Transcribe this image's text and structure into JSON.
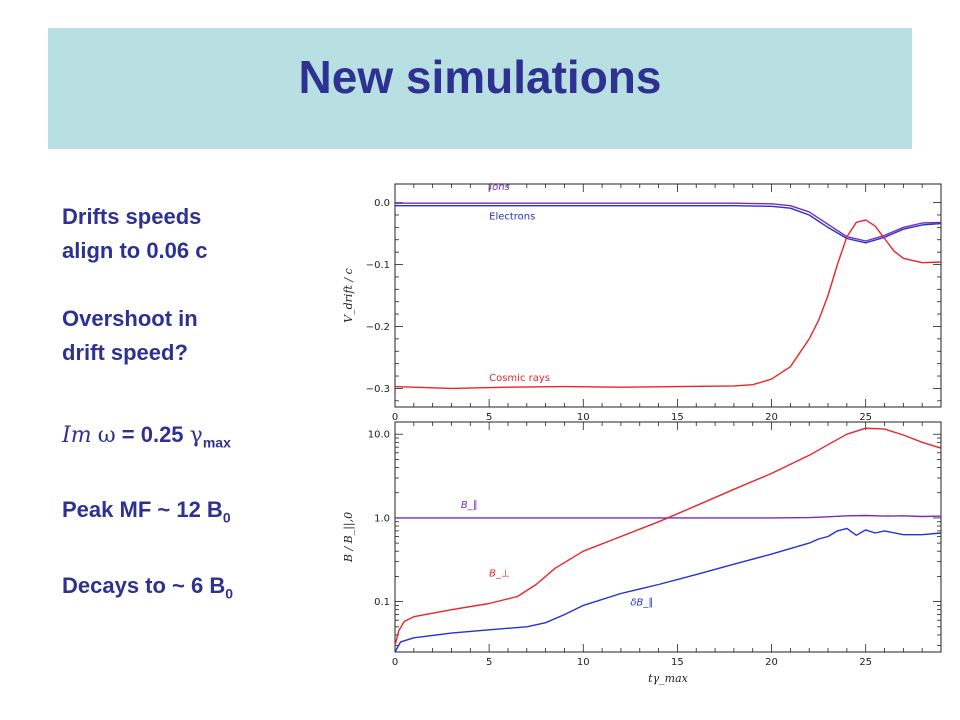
{
  "slide": {
    "title": "New simulations",
    "notes": {
      "line1": "Drifts speeds",
      "line2": "align to 0.06 c",
      "line3": "Overshoot in",
      "line4": "drift speed?",
      "growth_im": "Im",
      "growth_omega": "ω",
      "growth_eq": "= 0.25",
      "growth_gamma": "γ",
      "growth_sub": "max",
      "peak_text": "Peak MF ~ 12 B",
      "peak_sub": "0",
      "decay_text": "Decays to ~ 6 B",
      "decay_sub": "0"
    }
  },
  "colors": {
    "title": "#2e3192",
    "band": "#b8e0e2",
    "red": "#e8262a",
    "blue": "#2432d6",
    "purple": "#7a2ab8"
  },
  "chart_data": [
    {
      "type": "line",
      "xlim": [
        0,
        29
      ],
      "ylim": [
        -0.33,
        0.03
      ],
      "xticks": [
        0,
        5,
        10,
        15,
        20,
        25
      ],
      "yticks": [
        {
          "v": 0.0,
          "label": "0.0"
        },
        {
          "v": -0.1,
          "label": "-0.1"
        },
        {
          "v": -0.2,
          "label": "-0.2"
        },
        {
          "v": -0.3,
          "label": "-0.3"
        }
      ],
      "ylabel": "V_drift / c",
      "series": [
        {
          "name": "Ions",
          "color": "#7a2ab8",
          "label_at": [
            5,
            0.02
          ],
          "points": [
            [
              0,
              -0.001
            ],
            [
              5,
              -0.001
            ],
            [
              10,
              -0.001
            ],
            [
              15,
              -0.001
            ],
            [
              18,
              -0.001
            ],
            [
              20,
              -0.002
            ],
            [
              21,
              -0.005
            ],
            [
              22,
              -0.015
            ],
            [
              23,
              -0.035
            ],
            [
              24,
              -0.055
            ],
            [
              25,
              -0.062
            ],
            [
              26,
              -0.053
            ],
            [
              27,
              -0.04
            ],
            [
              28,
              -0.033
            ],
            [
              29,
              -0.032
            ]
          ]
        },
        {
          "name": "Electrons",
          "color": "#2432d6",
          "label_at": [
            5,
            -0.027
          ],
          "points": [
            [
              0,
              -0.005
            ],
            [
              5,
              -0.005
            ],
            [
              10,
              -0.005
            ],
            [
              15,
              -0.005
            ],
            [
              18,
              -0.005
            ],
            [
              20,
              -0.006
            ],
            [
              21,
              -0.009
            ],
            [
              22,
              -0.02
            ],
            [
              23,
              -0.04
            ],
            [
              24,
              -0.058
            ],
            [
              25,
              -0.065
            ],
            [
              26,
              -0.056
            ],
            [
              27,
              -0.043
            ],
            [
              28,
              -0.036
            ],
            [
              29,
              -0.034
            ]
          ]
        },
        {
          "name": "Cosmic rays",
          "color": "#e8262a",
          "label_at": [
            5,
            -0.288
          ],
          "points": [
            [
              0,
              -0.297
            ],
            [
              3,
              -0.3
            ],
            [
              6,
              -0.298
            ],
            [
              9,
              -0.297
            ],
            [
              12,
              -0.298
            ],
            [
              15,
              -0.297
            ],
            [
              18,
              -0.296
            ],
            [
              19,
              -0.294
            ],
            [
              20,
              -0.285
            ],
            [
              21,
              -0.265
            ],
            [
              22,
              -0.22
            ],
            [
              22.5,
              -0.19
            ],
            [
              23,
              -0.15
            ],
            [
              23.5,
              -0.1
            ],
            [
              24,
              -0.055
            ],
            [
              24.5,
              -0.032
            ],
            [
              25,
              -0.028
            ],
            [
              25.5,
              -0.038
            ],
            [
              26,
              -0.058
            ],
            [
              26.5,
              -0.078
            ],
            [
              27,
              -0.09
            ],
            [
              28,
              -0.097
            ],
            [
              29,
              -0.096
            ]
          ]
        }
      ]
    },
    {
      "type": "line",
      "log_y": true,
      "xlim": [
        0,
        29
      ],
      "ylim": [
        0.025,
        14
      ],
      "xticks": [
        0,
        5,
        10,
        15,
        20,
        25
      ],
      "yticks": [
        {
          "v": 0.1,
          "label": "0.1"
        },
        {
          "v": 1.0,
          "label": "1.0"
        },
        {
          "v": 10.0,
          "label": "10.0"
        }
      ],
      "xlabel": "tγ_max",
      "ylabel": "B / B_||,0",
      "series": [
        {
          "name": "B_∥",
          "color": "#7a2ab8",
          "label_at": [
            3.5,
            1.32
          ],
          "points": [
            [
              0,
              1.0
            ],
            [
              10,
              1.0
            ],
            [
              20,
              1.0
            ],
            [
              22,
              1.01
            ],
            [
              23,
              1.03
            ],
            [
              24,
              1.06
            ],
            [
              25,
              1.07
            ],
            [
              26,
              1.05
            ],
            [
              27,
              1.06
            ],
            [
              28,
              1.04
            ],
            [
              29,
              1.05
            ]
          ]
        },
        {
          "name": "B_⊥",
          "color": "#e8262a",
          "label_at": [
            5,
            0.2
          ],
          "points": [
            [
              0,
              0.03
            ],
            [
              0.2,
              0.045
            ],
            [
              0.5,
              0.058
            ],
            [
              1,
              0.066
            ],
            [
              3,
              0.08
            ],
            [
              5,
              0.095
            ],
            [
              6.5,
              0.115
            ],
            [
              7.5,
              0.16
            ],
            [
              8.5,
              0.25
            ],
            [
              10,
              0.4
            ],
            [
              12,
              0.6
            ],
            [
              14,
              0.9
            ],
            [
              16,
              1.4
            ],
            [
              18,
              2.2
            ],
            [
              20,
              3.4
            ],
            [
              22,
              5.6
            ],
            [
              23,
              7.5
            ],
            [
              24,
              10.0
            ],
            [
              25,
              11.8
            ],
            [
              26,
              11.5
            ],
            [
              27,
              9.8
            ],
            [
              28,
              8.0
            ],
            [
              29,
              6.8
            ]
          ]
        },
        {
          "name": "δB_∥",
          "color": "#2432d6",
          "label_at": [
            12.5,
            0.09
          ],
          "points": [
            [
              0,
              0.025
            ],
            [
              0.3,
              0.033
            ],
            [
              1,
              0.037
            ],
            [
              3,
              0.042
            ],
            [
              5,
              0.046
            ],
            [
              7,
              0.05
            ],
            [
              8,
              0.056
            ],
            [
              9,
              0.07
            ],
            [
              10,
              0.09
            ],
            [
              12,
              0.125
            ],
            [
              14,
              0.16
            ],
            [
              16,
              0.21
            ],
            [
              18,
              0.28
            ],
            [
              20,
              0.37
            ],
            [
              21,
              0.43
            ],
            [
              22,
              0.5
            ],
            [
              22.5,
              0.56
            ],
            [
              23,
              0.6
            ],
            [
              23.5,
              0.7
            ],
            [
              24,
              0.75
            ],
            [
              24.5,
              0.62
            ],
            [
              25,
              0.72
            ],
            [
              25.5,
              0.66
            ],
            [
              26,
              0.7
            ],
            [
              27,
              0.63
            ],
            [
              28,
              0.63
            ],
            [
              29,
              0.66
            ]
          ]
        }
      ]
    }
  ]
}
